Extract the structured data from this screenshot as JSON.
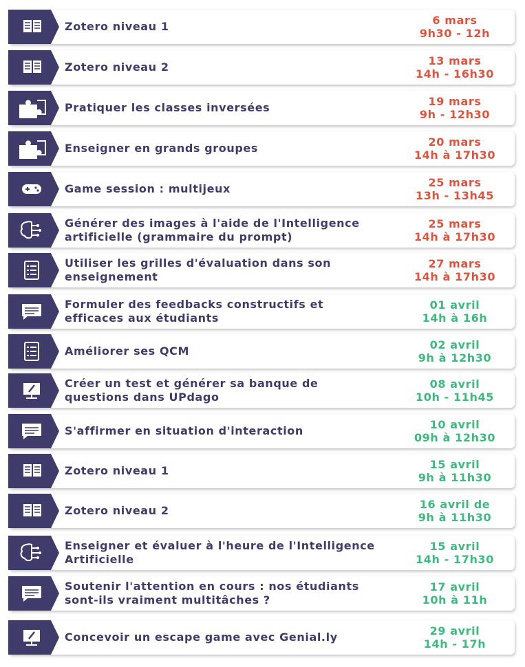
{
  "items": [
    {
      "title": [
        "Zotero niveau 1"
      ],
      "date": [
        "6 mars",
        "9h30 - 12h"
      ],
      "color": "#e0533f"
    },
    {
      "title": [
        "Zotero niveau 2"
      ],
      "date": [
        "13 mars",
        "14h - 16h30"
      ],
      "color": "#e0533f"
    },
    {
      "title": [
        "Pratiquer les classes inversées"
      ],
      "date": [
        "19 mars",
        "9h - 12h30"
      ],
      "color": "#e0533f"
    },
    {
      "title": [
        "Enseigner en grands groupes"
      ],
      "date": [
        "20 mars",
        "14h à 17h30"
      ],
      "color": "#e0533f"
    },
    {
      "title": [
        "Game session : multijeux"
      ],
      "date": [
        "25 mars",
        "13h - 13h45"
      ],
      "color": "#e0533f"
    },
    {
      "title": [
        "Générer des images à l'aide de l'Intelligence",
        "artificielle (grammaire du prompt)"
      ],
      "date": [
        "25 mars",
        "14h à 17h30"
      ],
      "color": "#e0533f"
    },
    {
      "title": [
        "Utiliser les grilles d'évaluation dans son",
        "enseignement"
      ],
      "date": [
        "27 mars",
        "14h à 17h30"
      ],
      "color": "#e0533f"
    },
    {
      "title": [
        "Formuler des feedbacks constructifs et",
        "efficaces aux étudiants"
      ],
      "date": [
        "01 avril",
        "14h à 16h"
      ],
      "color": "#3dba7e"
    },
    {
      "title": [
        "Améliorer ses QCM"
      ],
      "date": [
        "02 avril",
        "9h à 12h30"
      ],
      "color": "#3dba7e"
    },
    {
      "title": [
        "Créer un test et générer sa banque de",
        "questions dans UPdago"
      ],
      "date": [
        "08 avril",
        "10h - 11h45"
      ],
      "color": "#3dba7e"
    },
    {
      "title": [
        "S'affirmer en situation d'interaction"
      ],
      "date": [
        "10 avril",
        "09h à 12h30"
      ],
      "color": "#3dba7e"
    },
    {
      "title": [
        "Zotero niveau 1"
      ],
      "date": [
        "15 avril",
        "9h à 11h30"
      ],
      "color": "#3dba7e"
    },
    {
      "title": [
        "Zotero niveau 2"
      ],
      "date": [
        "16 avril de",
        "9h à 11h30"
      ],
      "color": "#3dba7e"
    },
    {
      "title": [
        "Enseigner et évaluer à l'heure de l'Intelligence",
        "Artificielle"
      ],
      "date": [
        "15 avril",
        "14h - 17h30"
      ],
      "color": "#3dba7e"
    },
    {
      "title": [
        "Soutenir l'attention en cours : nos étudiants",
        "sont-ils vraiment multitâches ?"
      ],
      "date": [
        "17 avril",
        "10h à 11h"
      ],
      "color": "#3dba7e"
    },
    {
      "title": [
        "Concevoir un escape game avec Genial.ly"
      ],
      "date": [
        "29 avril",
        "14h - 17h"
      ],
      "color": "#3dba7e"
    }
  ]
}
